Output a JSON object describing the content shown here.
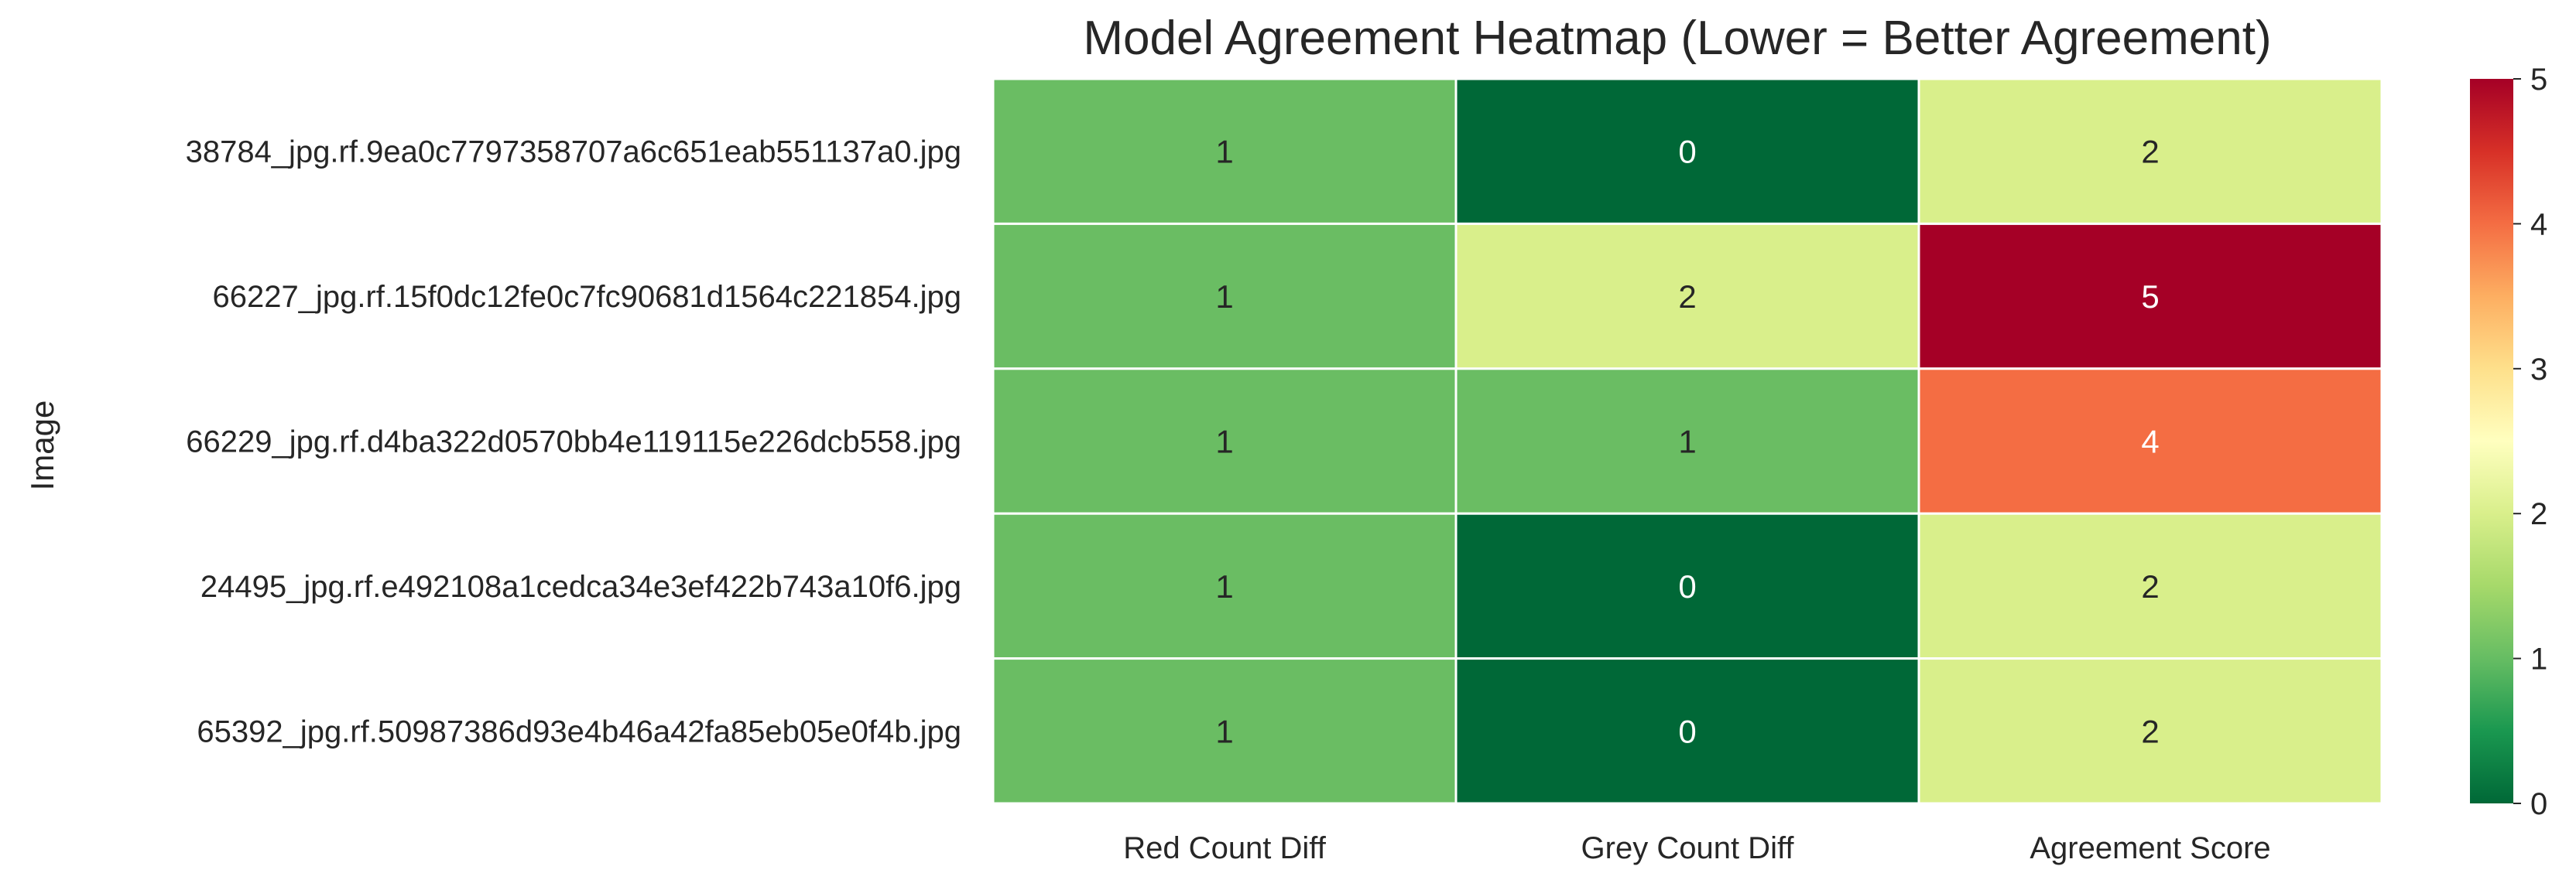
{
  "chart_data": {
    "type": "heatmap",
    "title": "Model Agreement Heatmap (Lower = Better Agreement)",
    "ylabel": "Image",
    "xlabel": "",
    "columns": [
      "Red Count Diff",
      "Grey Count Diff",
      "Agreement Score"
    ],
    "rows": [
      "38784_jpg.rf.9ea0c7797358707a6c651eab551137a0.jpg",
      "66227_jpg.rf.15f0dc12fe0c7fc90681d1564c221854.jpg",
      "66229_jpg.rf.d4ba322d0570bb4e119115e226dcb558.jpg",
      "24495_jpg.rf.e492108a1cedca34e3ef422b743a10f6.jpg",
      "65392_jpg.rf.50987386d93e4b46a42fa85eb05e0f4b.jpg"
    ],
    "values": [
      [
        1,
        0,
        2
      ],
      [
        1,
        2,
        5
      ],
      [
        1,
        1,
        4
      ],
      [
        1,
        0,
        2
      ],
      [
        1,
        0,
        2
      ]
    ],
    "colorbar": {
      "range": [
        0,
        5
      ],
      "ticks": [
        "0",
        "1",
        "2",
        "3",
        "4",
        "5"
      ],
      "colormap": "RdYlGn_r"
    },
    "colors": {
      "0": "#006837",
      "1": "#6abd63",
      "2": "#d9ef8b",
      "4": "#f46d43",
      "5": "#a50026"
    }
  }
}
